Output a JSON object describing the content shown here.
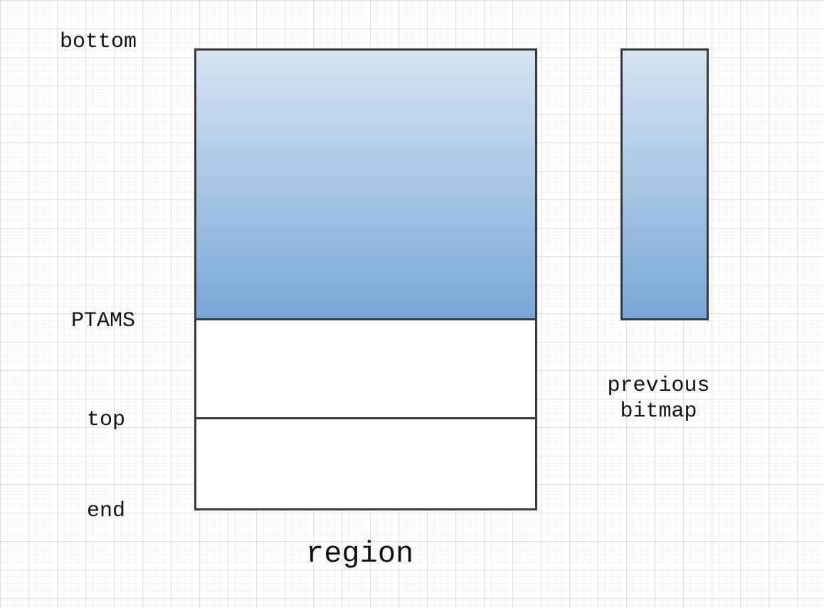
{
  "labels": {
    "bottom": "bottom",
    "ptams": "PTAMS",
    "top": "top",
    "end": "end",
    "region": "region",
    "previous_bitmap": "previous\nbitmap"
  },
  "colors": {
    "fill_top": "#d6e4f2",
    "fill_bottom": "#78a7d8",
    "stroke": "#3a3a3a",
    "grid": "#dcdcf0"
  }
}
